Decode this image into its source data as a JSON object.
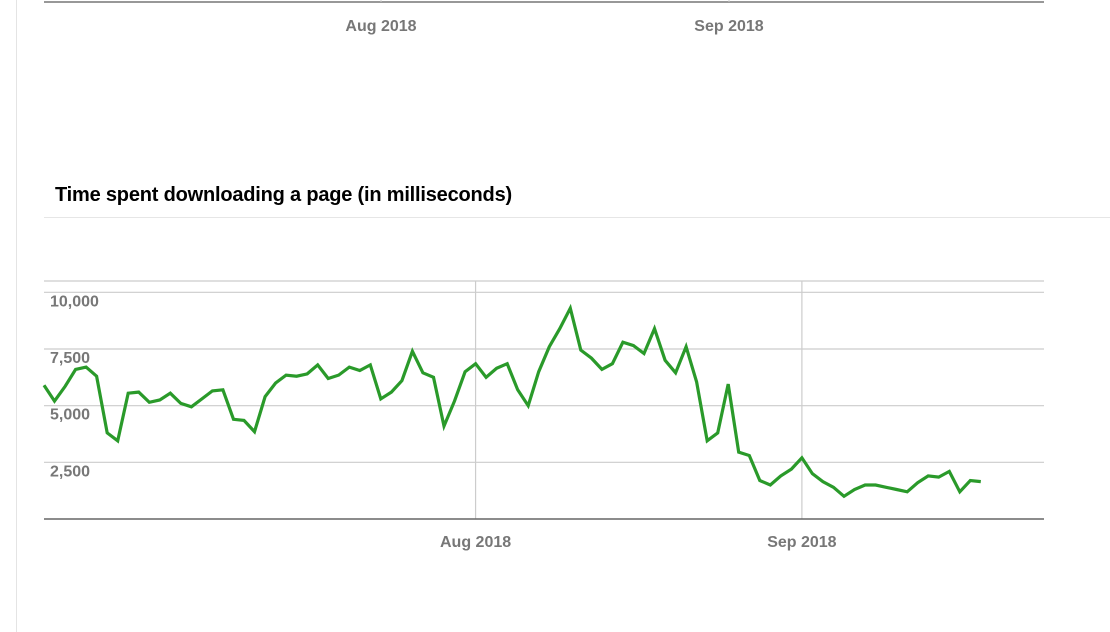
{
  "top_chart": {
    "x_tick_labels": [
      "Aug 2018",
      "Sep 2018"
    ]
  },
  "chart_data": {
    "type": "line",
    "title": "Time spent downloading a page (in milliseconds)",
    "xlabel": "",
    "ylabel": "",
    "x_start": "2018-06-21",
    "x_end": "2018-09-24",
    "x_ticks": [
      {
        "date": "2018-08-01",
        "label": "Aug 2018"
      },
      {
        "date": "2018-09-01",
        "label": "Sep 2018"
      }
    ],
    "y_ticks": [
      2500,
      5000,
      7500,
      10000
    ],
    "y_tick_labels": [
      "2,500",
      "5,000",
      "7,500",
      "10,000"
    ],
    "ylim": [
      0,
      10500
    ],
    "grid": true,
    "line_color": "#2a9a2a",
    "series": [
      {
        "points": [
          [
            "2018-06-21",
            5900
          ],
          [
            "2018-06-22",
            5200
          ],
          [
            "2018-06-23",
            5850
          ],
          [
            "2018-06-24",
            6600
          ],
          [
            "2018-06-25",
            6700
          ],
          [
            "2018-06-26",
            6300
          ],
          [
            "2018-06-27",
            3800
          ],
          [
            "2018-06-28",
            3450
          ],
          [
            "2018-06-29",
            5550
          ],
          [
            "2018-06-30",
            5600
          ],
          [
            "2018-07-01",
            5150
          ],
          [
            "2018-07-02",
            5250
          ],
          [
            "2018-07-03",
            5550
          ],
          [
            "2018-07-04",
            5100
          ],
          [
            "2018-07-05",
            4950
          ],
          [
            "2018-07-06",
            5300
          ],
          [
            "2018-07-07",
            5650
          ],
          [
            "2018-07-08",
            5700
          ],
          [
            "2018-07-09",
            4400
          ],
          [
            "2018-07-10",
            4350
          ],
          [
            "2018-07-11",
            3850
          ],
          [
            "2018-07-12",
            5400
          ],
          [
            "2018-07-13",
            6000
          ],
          [
            "2018-07-14",
            6350
          ],
          [
            "2018-07-15",
            6300
          ],
          [
            "2018-07-16",
            6400
          ],
          [
            "2018-07-17",
            6800
          ],
          [
            "2018-07-18",
            6200
          ],
          [
            "2018-07-19",
            6350
          ],
          [
            "2018-07-20",
            6700
          ],
          [
            "2018-07-21",
            6550
          ],
          [
            "2018-07-22",
            6800
          ],
          [
            "2018-07-23",
            5300
          ],
          [
            "2018-07-24",
            5600
          ],
          [
            "2018-07-25",
            6100
          ],
          [
            "2018-07-26",
            7400
          ],
          [
            "2018-07-27",
            6450
          ],
          [
            "2018-07-28",
            6250
          ],
          [
            "2018-07-29",
            4100
          ],
          [
            "2018-07-30",
            5200
          ],
          [
            "2018-07-31",
            6500
          ],
          [
            "2018-08-01",
            6850
          ],
          [
            "2018-08-02",
            6250
          ],
          [
            "2018-08-03",
            6650
          ],
          [
            "2018-08-04",
            6850
          ],
          [
            "2018-08-05",
            5700
          ],
          [
            "2018-08-06",
            5000
          ],
          [
            "2018-08-07",
            6500
          ],
          [
            "2018-08-08",
            7600
          ],
          [
            "2018-08-09",
            8400
          ],
          [
            "2018-08-10",
            9300
          ],
          [
            "2018-08-11",
            7450
          ],
          [
            "2018-08-12",
            7100
          ],
          [
            "2018-08-13",
            6600
          ],
          [
            "2018-08-14",
            6850
          ],
          [
            "2018-08-15",
            7800
          ],
          [
            "2018-08-16",
            7650
          ],
          [
            "2018-08-17",
            7300
          ],
          [
            "2018-08-18",
            8400
          ],
          [
            "2018-08-19",
            7000
          ],
          [
            "2018-08-20",
            6450
          ],
          [
            "2018-08-21",
            7600
          ],
          [
            "2018-08-22",
            6050
          ],
          [
            "2018-08-23",
            3450
          ],
          [
            "2018-08-24",
            3800
          ],
          [
            "2018-08-25",
            5950
          ],
          [
            "2018-08-26",
            2950
          ],
          [
            "2018-08-27",
            2800
          ],
          [
            "2018-08-28",
            1700
          ],
          [
            "2018-08-29",
            1500
          ],
          [
            "2018-08-30",
            1900
          ],
          [
            "2018-08-31",
            2200
          ],
          [
            "2018-09-01",
            2700
          ],
          [
            "2018-09-02",
            2000
          ],
          [
            "2018-09-03",
            1650
          ],
          [
            "2018-09-04",
            1400
          ],
          [
            "2018-09-05",
            1000
          ],
          [
            "2018-09-06",
            1300
          ],
          [
            "2018-09-07",
            1500
          ],
          [
            "2018-09-08",
            1500
          ],
          [
            "2018-09-09",
            1400
          ],
          [
            "2018-09-10",
            1300
          ],
          [
            "2018-09-11",
            1200
          ],
          [
            "2018-09-12",
            1600
          ],
          [
            "2018-09-13",
            1900
          ],
          [
            "2018-09-14",
            1850
          ],
          [
            "2018-09-15",
            2100
          ],
          [
            "2018-09-16",
            1200
          ],
          [
            "2018-09-17",
            1700
          ],
          [
            "2018-09-18",
            1650
          ]
        ]
      }
    ]
  }
}
